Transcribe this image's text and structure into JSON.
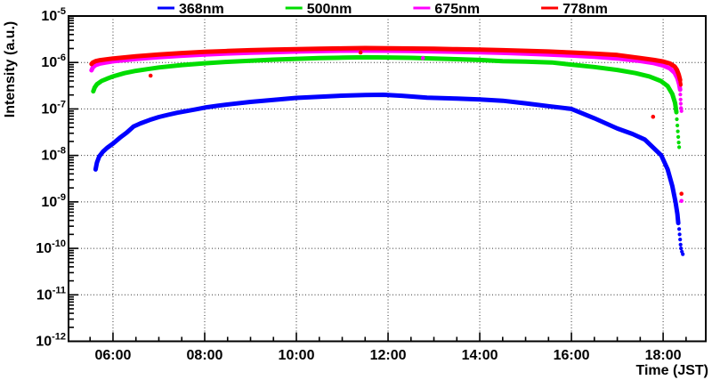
{
  "chart_data": {
    "type": "scatter",
    "title": "",
    "xlabel": "Time (JST)",
    "ylabel": "Intensity (a.u.)",
    "y_scale": "log",
    "y_range": [
      1e-12,
      1e-05
    ],
    "y_tick_exponents": [
      -5,
      -6,
      -7,
      -8,
      -9,
      -10,
      -11,
      -12
    ],
    "x_range_hours": [
      5.03,
      18.93
    ],
    "x_major_tick_hours": [
      6,
      8,
      10,
      12,
      14,
      16,
      18
    ],
    "x_major_tick_labels": [
      "06:00",
      "08:00",
      "10:00",
      "12:00",
      "14:00",
      "16:00",
      "18:00"
    ],
    "x_minor_tick_interval_hours": 0.5,
    "grid": "dotted lines at major ticks",
    "legend_position": "top",
    "series": [
      {
        "name": "368nm",
        "color": "#0000ff",
        "points": [
          [
            5.62,
            5e-09
          ],
          [
            5.65,
            7e-09
          ],
          [
            5.7,
            9.5e-09
          ],
          [
            5.78,
            1.2e-08
          ],
          [
            5.87,
            1.45e-08
          ],
          [
            6.0,
            1.8e-08
          ],
          [
            6.15,
            2.4e-08
          ],
          [
            6.3,
            3.1e-08
          ],
          [
            6.45,
            4.2e-08
          ],
          [
            6.6,
            4.9e-08
          ],
          [
            6.8,
            5.8e-08
          ],
          [
            7.0,
            6.7e-08
          ],
          [
            7.2,
            7.5e-08
          ],
          [
            7.4,
            8.3e-08
          ],
          [
            7.6,
            9e-08
          ],
          [
            7.8,
            9.8e-08
          ],
          [
            8.0,
            1.07e-07
          ],
          [
            8.3,
            1.18e-07
          ],
          [
            8.6,
            1.28e-07
          ],
          [
            9.0,
            1.42e-07
          ],
          [
            9.5,
            1.56e-07
          ],
          [
            10.0,
            1.73e-07
          ],
          [
            10.5,
            1.83e-07
          ],
          [
            11.0,
            1.93e-07
          ],
          [
            11.5,
            2e-07
          ],
          [
            11.9,
            2.02e-07
          ],
          [
            12.3,
            1.92e-07
          ],
          [
            12.85,
            1.75e-07
          ],
          [
            13.5,
            1.67e-07
          ],
          [
            14.0,
            1.6e-07
          ],
          [
            14.5,
            1.5e-07
          ],
          [
            15.0,
            1.32e-07
          ],
          [
            15.5,
            1.15e-07
          ],
          [
            16.0,
            1e-07
          ],
          [
            16.5,
            6.3e-08
          ],
          [
            17.0,
            3.8e-08
          ],
          [
            17.33,
            2.9e-08
          ],
          [
            17.6,
            2.2e-08
          ],
          [
            17.96,
            1e-08
          ],
          [
            18.1,
            5e-09
          ],
          [
            18.2,
            2.2e-09
          ],
          [
            18.27,
            1e-09
          ],
          [
            18.31,
            5.5e-10
          ],
          [
            18.33,
            3.5e-10
          ]
        ],
        "tail_dots": [
          [
            18.35,
            2.6e-10
          ],
          [
            18.36,
            2e-10
          ],
          [
            18.37,
            1.55e-10
          ],
          [
            18.38,
            1.2e-10
          ],
          [
            18.39,
            1e-10
          ],
          [
            18.41,
            8.5e-11
          ],
          [
            18.43,
            7.5e-11
          ]
        ]
      },
      {
        "name": "500nm",
        "color": "#00dd00",
        "points": [
          [
            5.57,
            2.4e-07
          ],
          [
            5.6,
            2.9e-07
          ],
          [
            5.65,
            3.4e-07
          ],
          [
            5.75,
            4e-07
          ],
          [
            5.9,
            4.6e-07
          ],
          [
            6.0,
            5e-07
          ],
          [
            6.25,
            5.9e-07
          ],
          [
            6.5,
            6.6e-07
          ],
          [
            6.75,
            7.2e-07
          ],
          [
            7.0,
            7.8e-07
          ],
          [
            7.5,
            8.8e-07
          ],
          [
            8.0,
            9.6e-07
          ],
          [
            8.5,
            1.03e-06
          ],
          [
            9.0,
            1.09e-06
          ],
          [
            9.5,
            1.15e-06
          ],
          [
            10.0,
            1.2e-06
          ],
          [
            10.5,
            1.24e-06
          ],
          [
            11.0,
            1.27e-06
          ],
          [
            11.5,
            1.29e-06
          ],
          [
            12.0,
            1.28e-06
          ],
          [
            12.5,
            1.26e-06
          ],
          [
            13.0,
            1.22e-06
          ],
          [
            13.5,
            1.18e-06
          ],
          [
            14.0,
            1.13e-06
          ],
          [
            14.5,
            1.07e-06
          ],
          [
            15.0,
            1.04e-06
          ],
          [
            15.57,
            1e-06
          ],
          [
            16.0,
            9e-07
          ],
          [
            16.5,
            8e-07
          ],
          [
            17.0,
            6.9e-07
          ],
          [
            17.4,
            5.9e-07
          ],
          [
            17.7,
            5e-07
          ],
          [
            17.95,
            4e-07
          ],
          [
            18.1,
            3.1e-07
          ],
          [
            18.2,
            2.1e-07
          ],
          [
            18.26,
            1.35e-07
          ],
          [
            18.29,
            8.5e-08
          ]
        ],
        "tail_dots": [
          [
            18.3,
            6e-08
          ],
          [
            18.31,
            4.4e-08
          ],
          [
            18.32,
            3.3e-08
          ],
          [
            18.33,
            2.5e-08
          ],
          [
            18.34,
            1.9e-08
          ],
          [
            18.35,
            1.5e-08
          ]
        ]
      },
      {
        "name": "675nm",
        "color": "#ff00ff",
        "points": [
          [
            5.53,
            6.8e-07
          ],
          [
            5.56,
            7.8e-07
          ],
          [
            5.62,
            8.8e-07
          ],
          [
            5.72,
            9.5e-07
          ],
          [
            5.85,
            1e-06
          ],
          [
            6.0,
            1.06e-06
          ],
          [
            6.5,
            1.19e-06
          ],
          [
            7.0,
            1.3e-06
          ],
          [
            7.5,
            1.4e-06
          ],
          [
            8.0,
            1.49e-06
          ],
          [
            8.5,
            1.56e-06
          ],
          [
            9.0,
            1.62e-06
          ],
          [
            9.5,
            1.67e-06
          ],
          [
            10.0,
            1.72e-06
          ],
          [
            10.5,
            1.76e-06
          ],
          [
            11.0,
            1.79e-06
          ],
          [
            11.5,
            1.8e-06
          ],
          [
            12.0,
            1.79e-06
          ],
          [
            12.5,
            1.77e-06
          ],
          [
            13.0,
            1.74e-06
          ],
          [
            13.5,
            1.7e-06
          ],
          [
            14.0,
            1.66e-06
          ],
          [
            14.5,
            1.61e-06
          ],
          [
            15.0,
            1.55e-06
          ],
          [
            15.5,
            1.48e-06
          ],
          [
            16.0,
            1.41e-06
          ],
          [
            16.5,
            1.33e-06
          ],
          [
            17.0,
            1.22e-06
          ],
          [
            17.5,
            1.08e-06
          ],
          [
            17.8,
            9.7e-07
          ],
          [
            18.0,
            8.6e-07
          ],
          [
            18.15,
            7.4e-07
          ],
          [
            18.25,
            6e-07
          ],
          [
            18.31,
            4.6e-07
          ],
          [
            18.35,
            3.4e-07
          ],
          [
            18.37,
            2.6e-07
          ]
        ],
        "tail_dots": [
          [
            18.375,
            2.05e-07
          ],
          [
            18.38,
            1.6e-07
          ],
          [
            18.385,
            1.3e-07
          ],
          [
            18.39,
            1.05e-07
          ],
          [
            18.4,
            9e-08
          ]
        ]
      },
      {
        "name": "778nm",
        "color": "#ff0000",
        "points": [
          [
            5.53,
            9.3e-07
          ],
          [
            5.56,
            1e-06
          ],
          [
            5.62,
            1.07e-06
          ],
          [
            5.72,
            1.12e-06
          ],
          [
            5.85,
            1.17e-06
          ],
          [
            6.0,
            1.22e-06
          ],
          [
            6.5,
            1.36e-06
          ],
          [
            7.0,
            1.49e-06
          ],
          [
            7.5,
            1.6e-06
          ],
          [
            8.0,
            1.7e-06
          ],
          [
            8.5,
            1.77e-06
          ],
          [
            9.0,
            1.84e-06
          ],
          [
            9.5,
            1.89e-06
          ],
          [
            10.0,
            1.94e-06
          ],
          [
            10.5,
            1.98e-06
          ],
          [
            11.0,
            2.01e-06
          ],
          [
            11.5,
            2.04e-06
          ],
          [
            12.0,
            2.02e-06
          ],
          [
            12.5,
            2e-06
          ],
          [
            13.0,
            1.97e-06
          ],
          [
            13.5,
            1.93e-06
          ],
          [
            14.0,
            1.89e-06
          ],
          [
            14.5,
            1.84e-06
          ],
          [
            15.0,
            1.78e-06
          ],
          [
            15.5,
            1.72e-06
          ],
          [
            16.0,
            1.64e-06
          ],
          [
            16.5,
            1.55e-06
          ],
          [
            17.0,
            1.45e-06
          ],
          [
            17.5,
            1.25e-06
          ],
          [
            17.8,
            1.13e-06
          ],
          [
            18.0,
            1.05e-06
          ],
          [
            18.15,
            9.5e-07
          ],
          [
            18.25,
            8.2e-07
          ],
          [
            18.3,
            7e-07
          ],
          [
            18.34,
            5.5e-07
          ],
          [
            18.37,
            4.2e-07
          ]
        ],
        "tail_dots": [
          [
            18.375,
            3.8e-07
          ],
          [
            18.38,
            3.5e-07
          ],
          [
            18.385,
            3.3e-07
          ]
        ]
      }
    ],
    "outliers": [
      {
        "series": "778nm",
        "color": "#ff0000",
        "t": 6.82,
        "intensity": 5.2e-07
      },
      {
        "series": "778nm",
        "color": "#ff0000",
        "t": 11.4,
        "intensity": 1.64e-06
      },
      {
        "series": "675nm",
        "color": "#ff00ff",
        "t": 12.76,
        "intensity": 1.25e-06
      },
      {
        "series": "778nm",
        "color": "#ff0000",
        "t": 17.78,
        "intensity": 6.8e-08
      },
      {
        "series": "778nm",
        "color": "#ff0000",
        "t": 18.4,
        "intensity": 1.5e-09
      },
      {
        "series": "675nm",
        "color": "#ff00ff",
        "t": 18.4,
        "intensity": 1.05e-09
      }
    ]
  }
}
